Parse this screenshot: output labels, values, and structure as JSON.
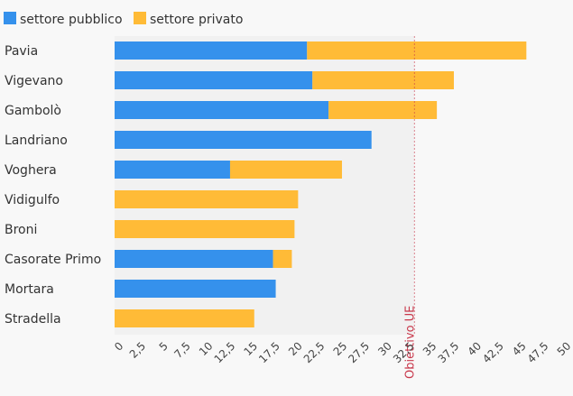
{
  "chart_data": {
    "type": "bar",
    "orientation": "horizontal",
    "stacked": true,
    "categories": [
      "Pavia",
      "Vigevano",
      "Gambolò",
      "Landriano",
      "Voghera",
      "Vidigulfo",
      "Broni",
      "Casorate Primo",
      "Mortara",
      "Stradella"
    ],
    "series": [
      {
        "name": "settore pubblico",
        "color": "#3591ec",
        "values": [
          21.5,
          22.1,
          23.9,
          28.7,
          12.9,
          0,
          0,
          17.7,
          18.0,
          0
        ]
      },
      {
        "name": "settore privato",
        "color": "#ffbb37",
        "values": [
          24.5,
          15.8,
          12.1,
          0,
          12.5,
          20.5,
          20.1,
          2.1,
          0,
          15.6
        ]
      }
    ],
    "xlim": [
      0,
      50
    ],
    "x_ticks": [
      "0",
      "2,5",
      "5",
      "7,5",
      "10",
      "12,5",
      "15",
      "17,5",
      "20",
      "22,5",
      "25",
      "27,5",
      "30",
      "32,5",
      "35",
      "37,5",
      "40",
      "42,5",
      "45",
      "47,5",
      "50"
    ],
    "reference_line": {
      "value": 33.5,
      "label": "Obiettivo UE",
      "color": "#c8374a"
    },
    "legend_position": "top-left",
    "grid": false,
    "plot_background": "#f1f1f1",
    "page_background": "#f8f8f8"
  }
}
